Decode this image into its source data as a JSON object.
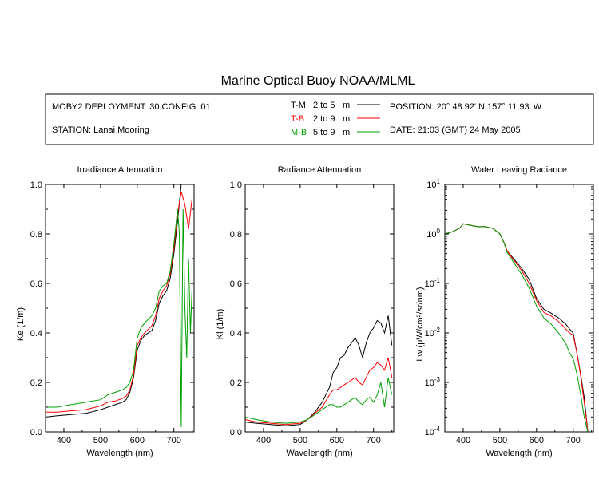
{
  "figure": {
    "title": "Marine Optical Buoy NOAA/MLML",
    "deployment": "MOBY2 DEPLOYMENT: 30 CONFIG: 01",
    "station": "STATION: Lanai Mooring",
    "position": "POSITION: 20° 48.92' N   157° 11.93' W",
    "date": "DATE: 21:03 (GMT) 24 May 2005",
    "legend": [
      {
        "key": "T-M",
        "range": "2 to 5",
        "unit": "m",
        "color": "#000000"
      },
      {
        "key": "T-B",
        "range": "2 to 9",
        "unit": "m",
        "color": "#ff0000"
      },
      {
        "key": "M-B",
        "range": "5 to 9",
        "unit": "m",
        "color": "#00a000"
      }
    ]
  },
  "chart_data": [
    {
      "type": "line",
      "title": "Irradiance Attenuation",
      "xlabel": "Wavelength (nm)",
      "ylabel": "Ke  (1/m)",
      "xlim": [
        350,
        755
      ],
      "ylim": [
        0.0,
        1.0
      ],
      "xticks": [
        400,
        500,
        600,
        700
      ],
      "yticks": [
        0.0,
        0.2,
        0.4,
        0.6,
        0.8,
        1.0
      ],
      "ytick_labels": [
        "0.0",
        "0.2",
        "0.4",
        "0.6",
        "0.8",
        "1.0"
      ],
      "grid": false,
      "series": [
        {
          "name": "T-M",
          "color": "#000000",
          "x": [
            350,
            380,
            420,
            460,
            500,
            520,
            540,
            560,
            570,
            580,
            590,
            600,
            610,
            620,
            640,
            650,
            660,
            670,
            680,
            690,
            700,
            710,
            720,
            730,
            740,
            750
          ],
          "y": [
            0.06,
            0.065,
            0.07,
            0.075,
            0.09,
            0.1,
            0.11,
            0.12,
            0.13,
            0.16,
            0.22,
            0.33,
            0.37,
            0.39,
            0.41,
            0.45,
            0.52,
            0.55,
            0.57,
            0.62,
            0.72,
            0.85,
            1.0,
            1.0,
            1.0,
            1.0
          ]
        },
        {
          "name": "T-B",
          "color": "#ff0000",
          "x": [
            350,
            380,
            420,
            460,
            500,
            520,
            540,
            560,
            570,
            580,
            590,
            600,
            610,
            620,
            640,
            650,
            660,
            670,
            680,
            690,
            700,
            710,
            720,
            730,
            740,
            750
          ],
          "y": [
            0.08,
            0.08,
            0.085,
            0.09,
            0.105,
            0.12,
            0.125,
            0.135,
            0.145,
            0.17,
            0.23,
            0.35,
            0.38,
            0.4,
            0.43,
            0.47,
            0.54,
            0.57,
            0.59,
            0.64,
            0.74,
            0.88,
            0.97,
            0.92,
            0.82,
            0.95
          ]
        },
        {
          "name": "M-B",
          "color": "#00a000",
          "x": [
            350,
            380,
            420,
            460,
            500,
            520,
            540,
            560,
            570,
            580,
            590,
            600,
            610,
            620,
            640,
            650,
            660,
            670,
            680,
            690,
            700,
            710,
            715,
            720,
            725,
            730,
            735,
            740,
            745,
            750
          ],
          "y": [
            0.1,
            0.1,
            0.11,
            0.12,
            0.13,
            0.15,
            0.16,
            0.17,
            0.18,
            0.2,
            0.25,
            0.38,
            0.42,
            0.44,
            0.47,
            0.5,
            0.57,
            0.59,
            0.6,
            0.65,
            0.76,
            0.9,
            0.8,
            0.02,
            0.9,
            0.5,
            0.3,
            0.7,
            0.4,
            0.6
          ]
        }
      ]
    },
    {
      "type": "line",
      "title": "Radiance Attenuation",
      "xlabel": "Wavelength (nm)",
      "ylabel": "Kl  (1/m)",
      "xlim": [
        350,
        755
      ],
      "ylim": [
        0.0,
        1.0
      ],
      "xticks": [
        400,
        500,
        600,
        700
      ],
      "yticks": [
        0.0,
        0.2,
        0.4,
        0.6,
        0.8,
        1.0
      ],
      "ytick_labels": [
        "0.0",
        "0.2",
        "0.4",
        "0.6",
        "0.8",
        "1.0"
      ],
      "grid": false,
      "series": [
        {
          "name": "T-M",
          "color": "#000000",
          "x": [
            350,
            380,
            420,
            460,
            500,
            520,
            540,
            560,
            580,
            590,
            600,
            610,
            620,
            630,
            640,
            650,
            660,
            670,
            680,
            690,
            700,
            710,
            720,
            730,
            740,
            750
          ],
          "y": [
            0.04,
            0.035,
            0.03,
            0.025,
            0.03,
            0.05,
            0.08,
            0.12,
            0.18,
            0.24,
            0.26,
            0.3,
            0.31,
            0.34,
            0.36,
            0.38,
            0.35,
            0.3,
            0.36,
            0.4,
            0.42,
            0.45,
            0.44,
            0.4,
            0.47,
            0.35
          ]
        },
        {
          "name": "T-B",
          "color": "#ff0000",
          "x": [
            350,
            380,
            420,
            460,
            500,
            520,
            540,
            560,
            580,
            590,
            600,
            610,
            620,
            630,
            640,
            650,
            660,
            670,
            680,
            690,
            700,
            710,
            720,
            730,
            740,
            750
          ],
          "y": [
            0.05,
            0.04,
            0.035,
            0.03,
            0.035,
            0.05,
            0.075,
            0.1,
            0.15,
            0.17,
            0.17,
            0.18,
            0.19,
            0.2,
            0.21,
            0.22,
            0.2,
            0.19,
            0.22,
            0.25,
            0.26,
            0.28,
            0.27,
            0.25,
            0.3,
            0.22
          ]
        },
        {
          "name": "M-B",
          "color": "#00a000",
          "x": [
            350,
            380,
            420,
            460,
            500,
            520,
            540,
            560,
            580,
            590,
            600,
            610,
            620,
            630,
            640,
            650,
            660,
            670,
            680,
            690,
            700,
            710,
            720,
            730,
            740,
            750
          ],
          "y": [
            0.06,
            0.05,
            0.04,
            0.035,
            0.04,
            0.05,
            0.07,
            0.09,
            0.11,
            0.11,
            0.1,
            0.1,
            0.11,
            0.12,
            0.13,
            0.14,
            0.12,
            0.11,
            0.13,
            0.14,
            0.12,
            0.15,
            0.2,
            0.1,
            0.22,
            0.15
          ]
        }
      ]
    },
    {
      "type": "line",
      "title": "Water Leaving Radiance",
      "xlabel": "Wavelength (nm)",
      "ylabel": "Lw  (µW/cm²/sr/nm)",
      "xlim": [
        350,
        755
      ],
      "ylim": [
        0.0001,
        10
      ],
      "yscale": "log",
      "xticks": [
        400,
        500,
        600,
        700
      ],
      "yticks": [
        0.0001,
        0.001,
        0.01,
        0.1,
        1,
        10
      ],
      "ytick_exponents": [
        "-4",
        "-3",
        "-2",
        "-1",
        "0",
        "1"
      ],
      "grid": false,
      "series": [
        {
          "name": "T-M",
          "color": "#000000",
          "x": [
            350,
            370,
            390,
            400,
            420,
            440,
            460,
            480,
            500,
            510,
            520,
            540,
            560,
            580,
            600,
            620,
            640,
            660,
            680,
            690,
            700,
            710,
            720,
            730,
            740
          ],
          "y": [
            1.0,
            1.1,
            1.3,
            1.6,
            1.5,
            1.4,
            1.4,
            1.3,
            1.0,
            0.7,
            0.45,
            0.3,
            0.2,
            0.12,
            0.05,
            0.03,
            0.025,
            0.02,
            0.015,
            0.012,
            0.01,
            0.004,
            0.0015,
            0.0005,
            0.0001
          ]
        },
        {
          "name": "T-B",
          "color": "#ff0000",
          "x": [
            350,
            370,
            390,
            400,
            420,
            440,
            460,
            480,
            500,
            510,
            520,
            540,
            560,
            580,
            600,
            620,
            640,
            660,
            680,
            690,
            700,
            710,
            720,
            730,
            740
          ],
          "y": [
            1.0,
            1.1,
            1.3,
            1.6,
            1.5,
            1.4,
            1.4,
            1.3,
            1.0,
            0.7,
            0.45,
            0.28,
            0.18,
            0.1,
            0.045,
            0.026,
            0.022,
            0.017,
            0.012,
            0.01,
            0.009,
            0.004,
            0.0014,
            0.0004,
            0.0001
          ]
        },
        {
          "name": "M-B",
          "color": "#00a000",
          "x": [
            350,
            370,
            390,
            400,
            420,
            440,
            460,
            480,
            500,
            510,
            520,
            540,
            560,
            580,
            600,
            620,
            640,
            660,
            680,
            690,
            700,
            710,
            720,
            730,
            740
          ],
          "y": [
            1.0,
            1.1,
            1.3,
            1.6,
            1.5,
            1.4,
            1.4,
            1.3,
            1.0,
            0.7,
            0.42,
            0.25,
            0.15,
            0.08,
            0.035,
            0.02,
            0.015,
            0.01,
            0.006,
            0.004,
            0.003,
            0.0015,
            0.0006,
            0.0002,
            0.0001
          ]
        }
      ]
    }
  ]
}
